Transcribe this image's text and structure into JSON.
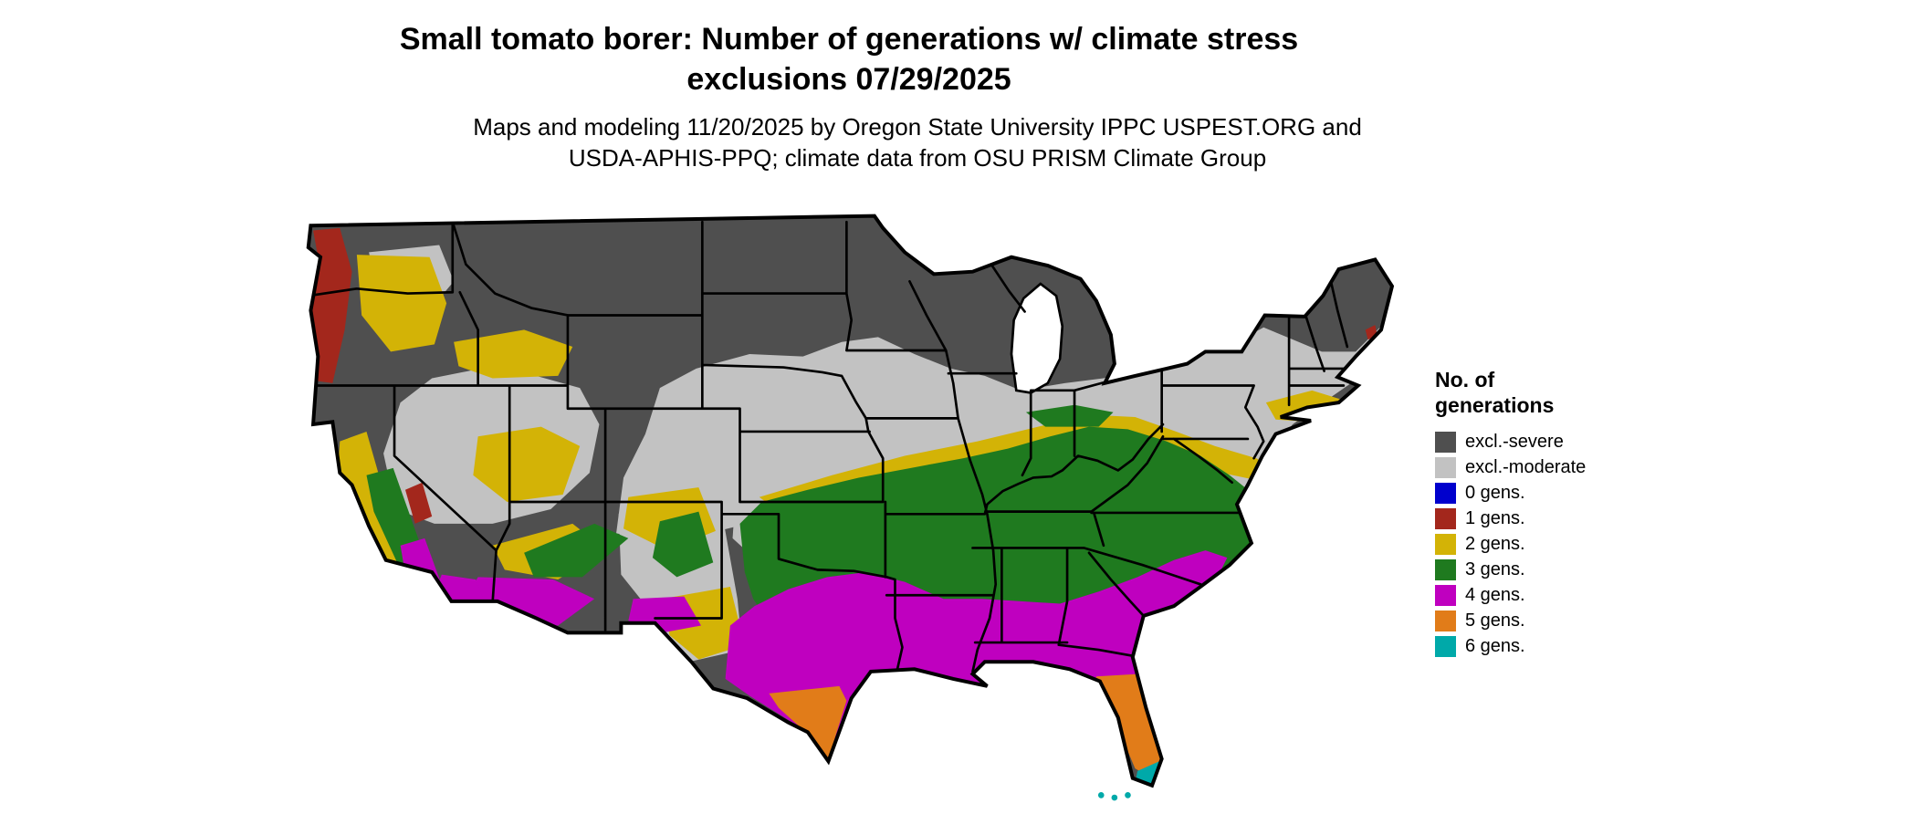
{
  "title": {
    "line1": "Small tomato borer: Number of generations w/ climate stress",
    "line2": "exclusions 07/29/2025"
  },
  "subtitle": {
    "line1": "Maps and modeling 11/20/2025 by Oregon State University IPPC USPEST.ORG and",
    "line2": "USDA-APHIS-PPQ; climate data from OSU PRISM Climate Group"
  },
  "legend": {
    "title_line1": "No. of",
    "title_line2": "generations",
    "items": [
      {
        "key": "severe",
        "label": "excl.-severe"
      },
      {
        "key": "moderate",
        "label": "excl.-moderate"
      },
      {
        "key": "g0",
        "label": "0 gens."
      },
      {
        "key": "g1",
        "label": "1 gens."
      },
      {
        "key": "g2",
        "label": "2 gens."
      },
      {
        "key": "g3",
        "label": "3 gens."
      },
      {
        "key": "g4",
        "label": "4 gens."
      },
      {
        "key": "g5",
        "label": "5 gens."
      },
      {
        "key": "g6",
        "label": "6 gens."
      }
    ]
  },
  "colors": {
    "severe": "#4f4f4f",
    "moderate": "#c2c2c2",
    "g0": "#0000cd",
    "g1": "#a3271c",
    "g2": "#d3b306",
    "g3": "#1f7a1f",
    "g4": "#bf00bf",
    "g5": "#e17c19",
    "g6": "#00a9a9",
    "state_border": "#000000",
    "background": "#ffffff"
  }
}
